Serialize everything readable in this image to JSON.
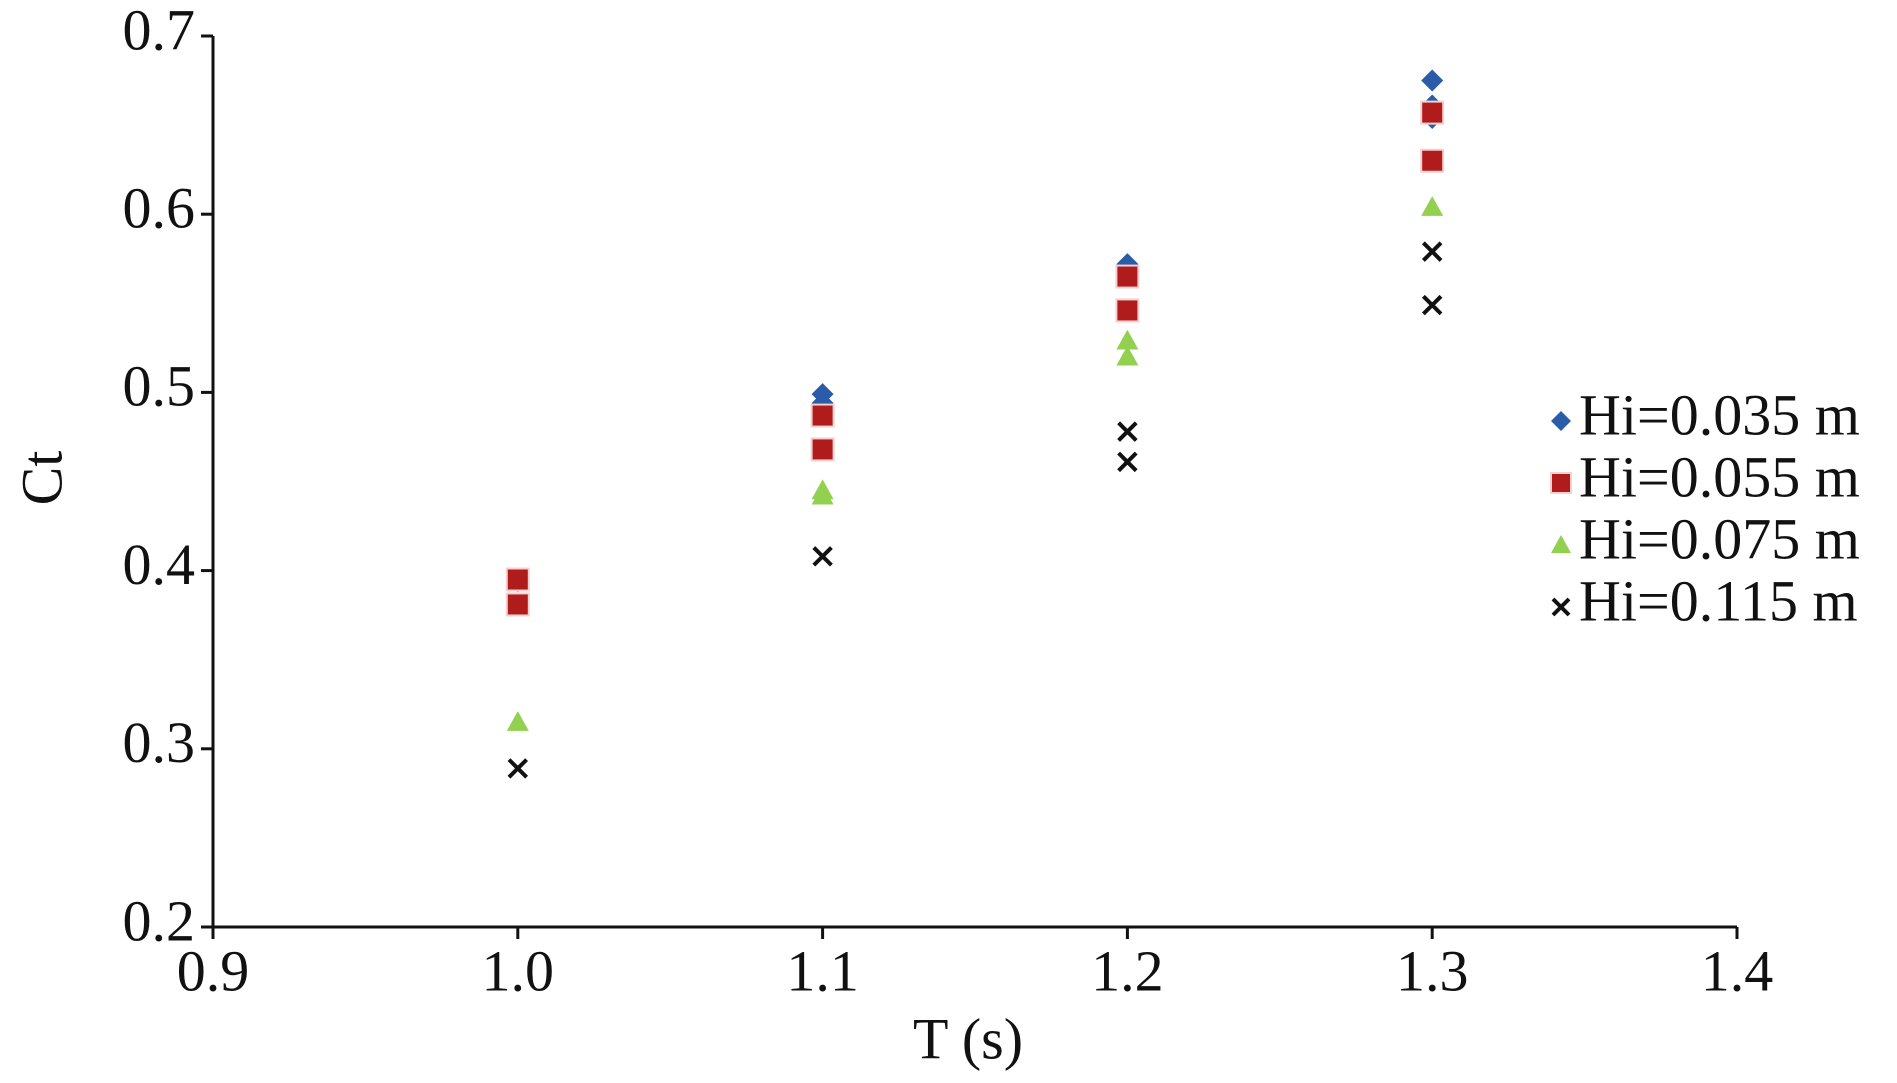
{
  "chart_data": {
    "type": "scatter",
    "xlabel": "T (s)",
    "ylabel": "Ct",
    "xlim": [
      0.9,
      1.4
    ],
    "xticks": [
      0.9,
      {
        "value": 1,
        "label": "1.0"
      },
      1.1,
      1.2,
      1.3,
      1.4
    ],
    "ylim": [
      0.2,
      0.7
    ],
    "yticks": [
      0.2,
      0.3,
      0.4,
      0.5,
      0.6,
      0.7
    ],
    "grid": false,
    "legend": "right",
    "series": [
      {
        "name": "Hi=0.035 m",
        "color": "#2a5caa",
        "marker": "diamond",
        "x": [
          1.0,
          1.0,
          1.1,
          1.1,
          1.2,
          1.2,
          1.3,
          1.3,
          1.3
        ],
        "values": [
          0.394,
          0.381,
          0.499,
          0.494,
          0.572,
          0.568,
          0.675,
          0.661,
          0.654
        ]
      },
      {
        "name": "Hi=0.055 m",
        "color": "#b01c1c",
        "marker": "square",
        "x": [
          1.0,
          1.0,
          1.1,
          1.1,
          1.2,
          1.2,
          1.3,
          1.3
        ],
        "values": [
          0.395,
          0.381,
          0.487,
          0.468,
          0.565,
          0.546,
          0.657,
          0.63
        ]
      },
      {
        "name": "Hi=0.075 m",
        "color": "#92d050",
        "marker": "triangle",
        "x": [
          1.0,
          1.1,
          1.1,
          1.2,
          1.2,
          1.3
        ],
        "values": [
          0.315,
          0.445,
          0.442,
          0.529,
          0.52,
          0.604
        ]
      },
      {
        "name": "Hi=0.115 m",
        "color": "#111111",
        "marker": "cross",
        "x": [
          1.0,
          1.1,
          1.2,
          1.2,
          1.3,
          1.3
        ],
        "values": [
          0.289,
          0.408,
          0.478,
          0.461,
          0.579,
          0.549
        ]
      }
    ]
  }
}
